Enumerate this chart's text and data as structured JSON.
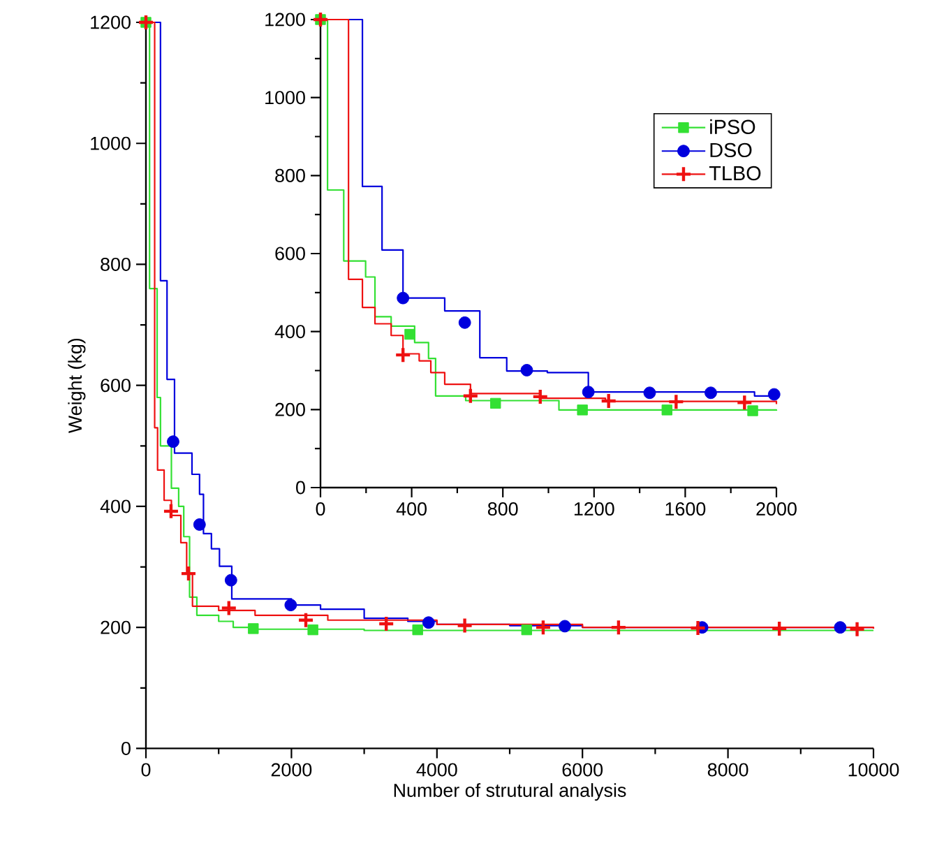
{
  "chart_data": [
    {
      "type": "step",
      "xlabel": "Number of strutural analysis",
      "ylabel": "Weight (kg)",
      "xlim": [
        0,
        10000
      ],
      "ylim": [
        0,
        1200
      ],
      "xticks": [
        0,
        {
          "value": 1000,
          "label": null
        },
        2000,
        {
          "value": 3000,
          "label": null
        },
        4000,
        {
          "value": 5000,
          "label": null
        },
        6000,
        {
          "value": 7000,
          "label": null
        },
        8000,
        {
          "value": 9000,
          "label": null
        },
        10000
      ],
      "yticks": [
        0,
        {
          "value": 100,
          "label": null
        },
        200,
        {
          "value": 300,
          "label": null
        },
        400,
        {
          "value": 500,
          "label": null
        },
        600,
        {
          "value": 700,
          "label": null
        },
        800,
        {
          "value": 900,
          "label": null
        },
        1000,
        {
          "value": 1100,
          "label": null
        },
        1200
      ],
      "series": [
        {
          "color": "#33e033",
          "x": [
            0,
            50,
            154,
            200,
            350,
            450,
            520,
            600,
            700,
            1000,
            1200,
            1500,
            3000,
            10000
          ],
          "values": [
            1200,
            760,
            580,
            500,
            430,
            400,
            350,
            250,
            220,
            210,
            200,
            197,
            195,
            195
          ]
        },
        {
          "color": "#0000dd",
          "x": [
            0,
            200,
            290,
            393,
            633,
            737,
            791,
            900,
            1011,
            1180,
            2000,
            2400,
            3000,
            3600,
            4000,
            5000,
            6000,
            10000
          ],
          "values": [
            1200,
            773,
            610,
            488,
            453,
            420,
            355,
            330,
            301,
            247,
            237,
            230,
            215,
            210,
            205,
            203,
            200,
            200
          ]
        },
        {
          "color": "#ee1111",
          "x": [
            0,
            120,
            160,
            250,
            350,
            480,
            560,
            640,
            1000,
            1500,
            2500,
            4000,
            6000,
            10000
          ],
          "values": [
            1200,
            530,
            460,
            410,
            385,
            340,
            290,
            235,
            228,
            220,
            212,
            205,
            200,
            198
          ]
        },
        {
          "type": "scatter",
          "marker": "square",
          "color": "#33e033",
          "x": [
            0,
            1476,
            2295,
            3735,
            5233
          ],
          "values": [
            1200,
            198,
            196,
            196,
            196
          ]
        },
        {
          "type": "scatter",
          "marker": "circle",
          "color": "#0000dd",
          "x": [
            374,
            737,
            1169,
            1990,
            3885,
            5758,
            7645,
            9543
          ],
          "values": [
            507,
            370,
            278,
            237,
            208,
            202,
            200,
            200
          ]
        },
        {
          "type": "scatter",
          "marker": "cross",
          "color": "#ee1111",
          "x": [
            0,
            345,
            585,
            1140,
            2198,
            3303,
            4382,
            5460,
            6496,
            7587,
            8706,
            9775
          ],
          "values": [
            1200,
            392,
            289,
            232,
            212,
            206,
            203,
            200,
            200,
            199,
            198,
            197
          ]
        }
      ]
    },
    {
      "type": "step",
      "legend": "top right",
      "xlim": [
        0,
        2000
      ],
      "ylim": [
        0,
        1200
      ],
      "xticks": [
        0,
        {
          "value": 200,
          "label": null
        },
        400,
        {
          "value": 600,
          "label": null
        },
        800,
        {
          "value": 1000,
          "label": null
        },
        1200,
        {
          "value": 1400,
          "label": null
        },
        1600,
        {
          "value": 1800,
          "label": null
        },
        2000
      ],
      "yticks": [
        0,
        {
          "value": 100,
          "label": null
        },
        200,
        {
          "value": 300,
          "label": null
        },
        400,
        {
          "value": 500,
          "label": null
        },
        600,
        {
          "value": 700,
          "label": null
        },
        800,
        {
          "value": 900,
          "label": null
        },
        1000,
        {
          "value": 1100,
          "label": null
        },
        1200
      ],
      "series": [
        {
          "color": "#33e033",
          "x": [
            0,
            31,
            102,
            198,
            239,
            310,
            413,
            474,
            505,
            637,
            1046,
            2000
          ],
          "values": [
            1200,
            763,
            581,
            540,
            438,
            414,
            372,
            331,
            235,
            223,
            199,
            197
          ]
        },
        {
          "color": "#0000dd",
          "x": [
            0,
            184,
            270,
            362,
            545,
            699,
            817,
            995,
            1175,
            1904,
            2000
          ],
          "values": [
            1200,
            772,
            609,
            486,
            453,
            333,
            299,
            295,
            245,
            235,
            235
          ]
        },
        {
          "color": "#ee1111",
          "x": [
            0,
            123,
            184,
            239,
            310,
            362,
            433,
            484,
            545,
            658,
            964,
            1250,
            2000
          ],
          "values": [
            1200,
            534,
            462,
            420,
            390,
            343,
            325,
            295,
            265,
            241,
            229,
            221,
            214
          ]
        },
        {
          "type": "scatter",
          "name": "iPSO",
          "marker": "square",
          "color": "#33e033",
          "x": [
            0,
            392,
            768,
            1149,
            1520,
            1896
          ],
          "values": [
            1200,
            393,
            216,
            199,
            199,
            197
          ]
        },
        {
          "type": "scatter",
          "name": "DSO",
          "marker": "circle",
          "color": "#0000dd",
          "x": [
            362,
            633,
            905,
            1175,
            1444,
            1712,
            1990
          ],
          "values": [
            486,
            423,
            301,
            245,
            243,
            243,
            239
          ]
        },
        {
          "type": "scatter",
          "name": "TLBO",
          "marker": "cross",
          "color": "#ee1111",
          "x": [
            0,
            362,
            658,
            964,
            1264,
            1560,
            1860
          ],
          "values": [
            1200,
            340,
            235,
            233,
            222,
            220,
            218
          ]
        }
      ]
    }
  ]
}
